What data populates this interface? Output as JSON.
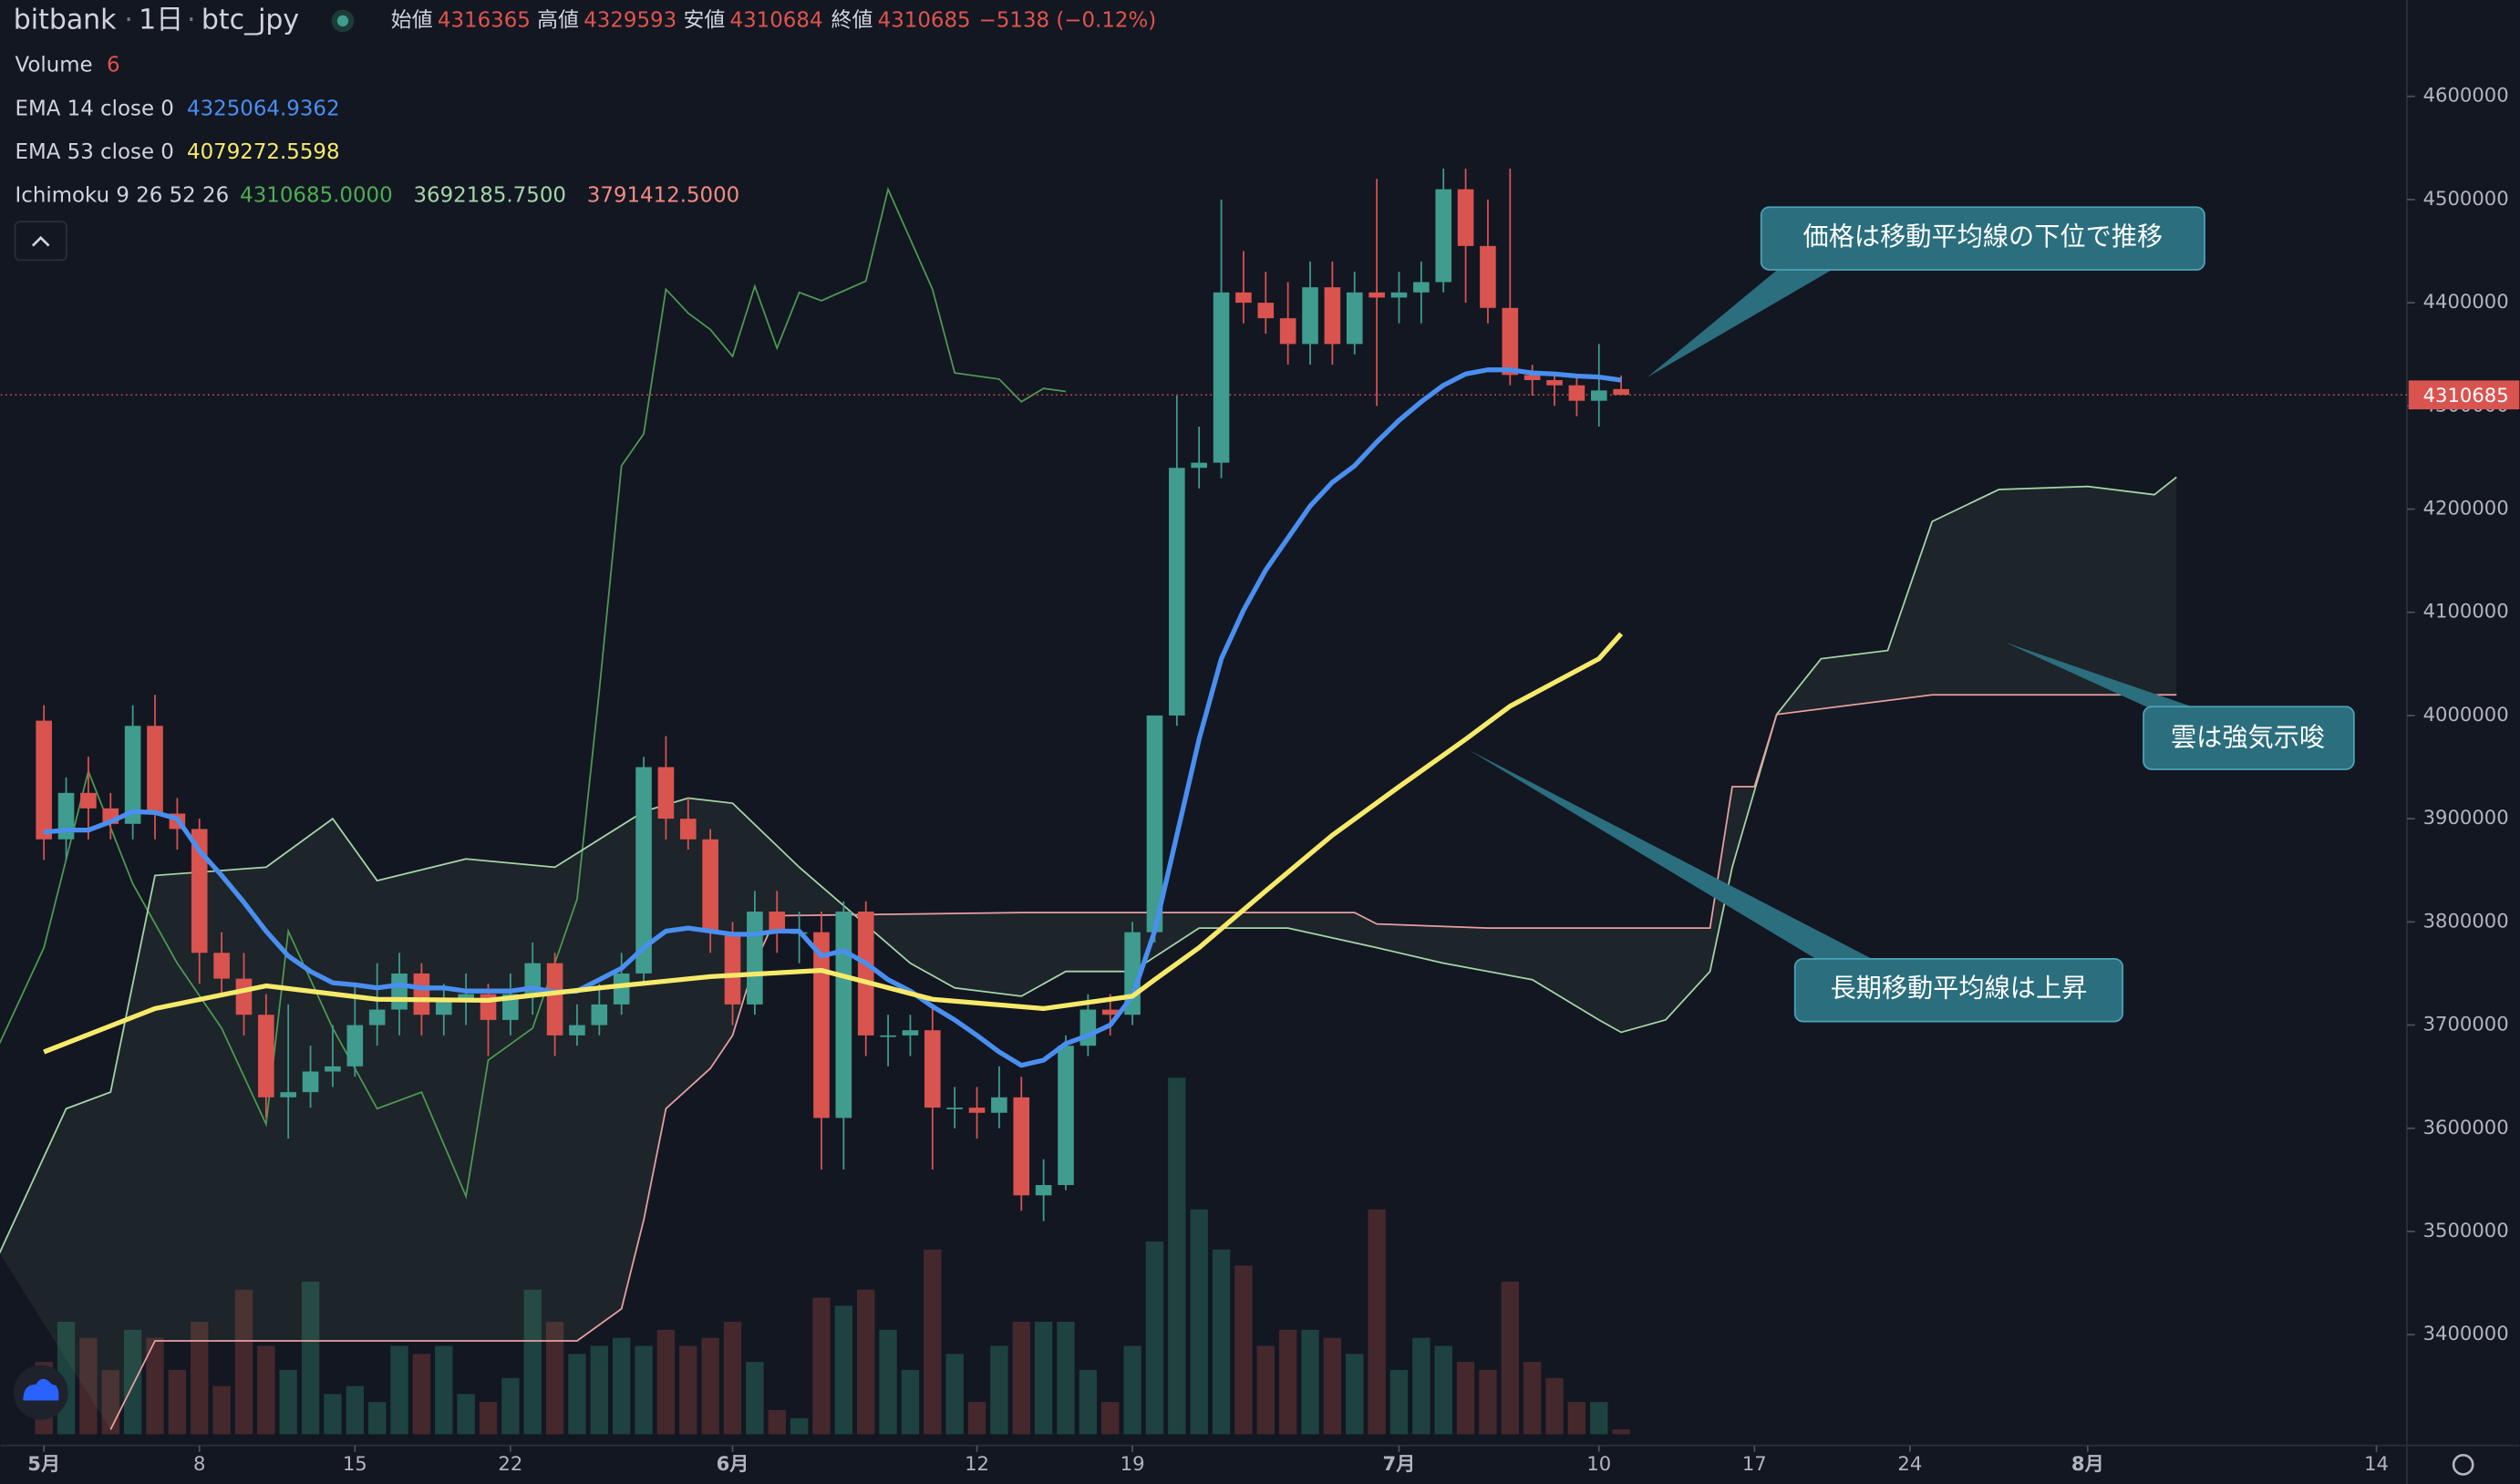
{
  "chart_data": {
    "type": "candlestick",
    "symbol": "bitbank",
    "interval": "1日",
    "pair": "btc_jpy",
    "ohlc_labels": [
      "始値",
      "高値",
      "安値",
      "終値"
    ],
    "change": "−5138 (−0.12%)",
    "up_color": "#3f9c8e",
    "down_color": "#d9534f",
    "x": [
      0,
      1,
      2,
      3,
      4,
      5,
      6,
      7,
      8,
      9,
      10,
      11,
      12,
      13,
      14,
      15,
      16,
      17,
      18,
      19,
      20,
      21,
      22,
      23,
      24,
      25,
      26,
      27,
      28,
      29,
      30,
      31,
      32,
      33,
      34,
      35,
      36,
      37,
      38,
      39,
      40,
      41,
      42,
      43,
      44,
      45,
      46,
      47,
      48,
      49,
      50,
      51,
      52,
      53,
      54,
      55,
      56,
      57,
      58,
      59,
      60,
      61,
      62,
      63,
      64,
      65,
      66,
      67,
      68,
      69,
      70,
      71
    ],
    "ohlc": [
      [
        3995000,
        4010000,
        3860000,
        3880000
      ],
      [
        3880000,
        3940000,
        3860000,
        3925000
      ],
      [
        3925000,
        3960000,
        3880000,
        3910000
      ],
      [
        3910000,
        3925000,
        3880000,
        3895000
      ],
      [
        3895000,
        4010000,
        3880000,
        3990000
      ],
      [
        3990000,
        4020000,
        3880000,
        3905000
      ],
      [
        3905000,
        3920000,
        3870000,
        3890000
      ],
      [
        3890000,
        3900000,
        3740000,
        3770000
      ],
      [
        3770000,
        3790000,
        3730000,
        3745000
      ],
      [
        3745000,
        3770000,
        3690000,
        3710000
      ],
      [
        3710000,
        3730000,
        3610000,
        3630000
      ],
      [
        3630000,
        3720000,
        3590000,
        3635000
      ],
      [
        3635000,
        3680000,
        3620000,
        3655000
      ],
      [
        3655000,
        3700000,
        3640000,
        3660000
      ],
      [
        3660000,
        3740000,
        3650000,
        3700000
      ],
      [
        3700000,
        3760000,
        3680000,
        3715000
      ],
      [
        3715000,
        3770000,
        3690000,
        3750000
      ],
      [
        3750000,
        3760000,
        3690000,
        3710000
      ],
      [
        3710000,
        3740000,
        3690000,
        3725000
      ],
      [
        3725000,
        3750000,
        3700000,
        3730000
      ],
      [
        3730000,
        3740000,
        3670000,
        3705000
      ],
      [
        3705000,
        3750000,
        3690000,
        3730000
      ],
      [
        3730000,
        3780000,
        3710000,
        3760000
      ],
      [
        3760000,
        3770000,
        3670000,
        3690000
      ],
      [
        3690000,
        3720000,
        3680000,
        3700000
      ],
      [
        3700000,
        3740000,
        3690000,
        3720000
      ],
      [
        3720000,
        3770000,
        3710000,
        3750000
      ],
      [
        3750000,
        3960000,
        3740000,
        3950000
      ],
      [
        3950000,
        3980000,
        3880000,
        3900000
      ],
      [
        3900000,
        3920000,
        3870000,
        3880000
      ],
      [
        3880000,
        3890000,
        3770000,
        3790000
      ],
      [
        3790000,
        3800000,
        3700000,
        3720000
      ],
      [
        3720000,
        3830000,
        3710000,
        3810000
      ],
      [
        3810000,
        3830000,
        3770000,
        3790000
      ],
      [
        3790000,
        3810000,
        3760000,
        3790000
      ],
      [
        3790000,
        3810000,
        3560000,
        3610000
      ],
      [
        3610000,
        3820000,
        3560000,
        3810000
      ],
      [
        3810000,
        3820000,
        3670000,
        3690000
      ],
      [
        3690000,
        3710000,
        3660000,
        3690000
      ],
      [
        3690000,
        3710000,
        3670000,
        3695000
      ],
      [
        3695000,
        3720000,
        3560000,
        3620000
      ],
      [
        3620000,
        3640000,
        3600000,
        3620000
      ],
      [
        3620000,
        3640000,
        3590000,
        3615000
      ],
      [
        3615000,
        3660000,
        3600000,
        3630000
      ],
      [
        3630000,
        3650000,
        3520000,
        3535000
      ],
      [
        3535000,
        3570000,
        3510000,
        3545000
      ],
      [
        3545000,
        3690000,
        3540000,
        3680000
      ],
      [
        3680000,
        3730000,
        3670000,
        3715000
      ],
      [
        3715000,
        3730000,
        3690000,
        3710000
      ],
      [
        3710000,
        3800000,
        3700000,
        3790000
      ],
      [
        3790000,
        4000000,
        3780000,
        4000000
      ],
      [
        4000000,
        4310000,
        3990000,
        4240000
      ],
      [
        4240000,
        4280000,
        4220000,
        4245000
      ],
      [
        4245000,
        4500000,
        4230000,
        4410000
      ],
      [
        4410000,
        4450000,
        4380000,
        4400000
      ],
      [
        4400000,
        4430000,
        4370000,
        4385000
      ],
      [
        4385000,
        4420000,
        4340000,
        4360000
      ],
      [
        4360000,
        4440000,
        4340000,
        4415000
      ],
      [
        4415000,
        4440000,
        4340000,
        4360000
      ],
      [
        4360000,
        4430000,
        4350000,
        4410000
      ],
      [
        4410000,
        4520000,
        4300000,
        4405000
      ],
      [
        4405000,
        4430000,
        4380000,
        4410000
      ],
      [
        4410000,
        4440000,
        4380000,
        4420000
      ],
      [
        4420000,
        4530000,
        4410000,
        4510000
      ],
      [
        4510000,
        4530000,
        4400000,
        4455000
      ],
      [
        4455000,
        4500000,
        4380000,
        4395000
      ],
      [
        4395000,
        4530000,
        4320000,
        4330000
      ],
      [
        4330000,
        4340000,
        4310000,
        4325000
      ],
      [
        4325000,
        4330000,
        4300000,
        4320000
      ],
      [
        4320000,
        4330000,
        4290000,
        4305000
      ],
      [
        4305000,
        4360000,
        4280000,
        4315000
      ],
      [
        4316365,
        4329593,
        4310684,
        4310685
      ]
    ],
    "volume": {
      "name": "Volume",
      "ylim": [
        0,
        900
      ],
      "values": [
        90,
        140,
        120,
        80,
        130,
        120,
        80,
        140,
        60,
        180,
        110,
        80,
        190,
        50,
        60,
        40,
        110,
        100,
        110,
        50,
        40,
        70,
        180,
        140,
        100,
        110,
        120,
        110,
        130,
        110,
        120,
        140,
        90,
        30,
        20,
        170,
        160,
        180,
        130,
        80,
        230,
        100,
        40,
        110,
        140,
        140,
        140,
        80,
        40,
        110,
        240,
        444,
        280,
        230,
        210,
        110,
        130,
        130,
        120,
        100,
        280,
        80,
        120,
        110,
        90,
        80,
        190,
        90,
        70,
        40,
        40,
        6
      ]
    },
    "series": [
      {
        "name": "EMA 14 close 0",
        "color": "#4a8ff0",
        "x": [
          0,
          1,
          2,
          3,
          4,
          5,
          6,
          7,
          8,
          9,
          10,
          11,
          12,
          13,
          14,
          15,
          16,
          17,
          18,
          19,
          20,
          21,
          22,
          23,
          24,
          25,
          26,
          27,
          28,
          29,
          30,
          31,
          32,
          33,
          34,
          35,
          36,
          37,
          38,
          39,
          40,
          41,
          42,
          43,
          44,
          45,
          46,
          47,
          48,
          49,
          50,
          51,
          52,
          53,
          54,
          55,
          56,
          57,
          58,
          59,
          60,
          61,
          62,
          63,
          64,
          65,
          66,
          67,
          68,
          69,
          70,
          71
        ],
        "values": [
          3887000,
          3889000,
          3889000,
          3897000,
          3907000,
          3906000,
          3900000,
          3869000,
          3845000,
          3819000,
          3791000,
          3767000,
          3752000,
          3741000,
          3739000,
          3736000,
          3739000,
          3736000,
          3736000,
          3733000,
          3733000,
          3733000,
          3736000,
          3732000,
          3733000,
          3744000,
          3755000,
          3775000,
          3791000,
          3794000,
          3791000,
          3788000,
          3788000,
          3791000,
          3791000,
          3767000,
          3772000,
          3760000,
          3744000,
          3733000,
          3718000,
          3705000,
          3690000,
          3674000,
          3661000,
          3666000,
          3682000,
          3690000,
          3700000,
          3728000,
          3791000,
          3884000,
          3977000,
          4055000,
          4102000,
          4141000,
          4172000,
          4203000,
          4226000,
          4242000,
          4265000,
          4286000,
          4304000,
          4320000,
          4331000,
          4335000,
          4335000,
          4332000,
          4331000,
          4329000,
          4328000,
          4325064.9362
        ]
      },
      {
        "name": "EMA 53 close 0",
        "color": "#f7ea6a",
        "x": [
          0,
          5,
          10,
          15,
          20,
          25,
          30,
          35,
          40,
          45,
          49,
          50,
          52,
          55,
          58,
          61,
          64,
          66,
          68,
          70,
          71
        ],
        "values": [
          3674000,
          3716000,
          3738000,
          3725000,
          3724000,
          3736000,
          3747000,
          3753000,
          3725000,
          3716000,
          3728000,
          3744000,
          3775000,
          3830000,
          3884000,
          3931000,
          3977000,
          4009000,
          4032000,
          4055000,
          4079272.5598
        ]
      }
    ],
    "ichimoku": {
      "name": "Ichimoku 9 26 52 26",
      "values": [
        4310685,
        3692185.75,
        3791412.5
      ],
      "value_labels": [
        "4310685.0000",
        "3692185.7500",
        "3791412.5000"
      ],
      "colors": [
        "#4caf50",
        "#a5d6a7",
        "#f28b82"
      ],
      "lines": [
        {
          "color": "#4c9a50",
          "x": [
            -2,
            0,
            2,
            4,
            6,
            8,
            10,
            11,
            13,
            15,
            17,
            19,
            20,
            22,
            23,
            24,
            25,
            26,
            27,
            28,
            29,
            30,
            31,
            32,
            33,
            34,
            35,
            37,
            38,
            40,
            41,
            43,
            44,
            45,
            46
          ],
          "values": [
            3682000,
            3775000,
            3946000,
            3837000,
            3760000,
            3697000,
            3604000,
            3791000,
            3697000,
            3619000,
            3635000,
            3534000,
            3666000,
            3697000,
            3760000,
            3822000,
            4024000,
            4242000,
            4273000,
            4413000,
            4390000,
            4374000,
            4348000,
            4416000,
            4356000,
            4410000,
            4402000,
            4421000,
            4510000,
            4413000,
            4332000,
            4326000,
            4304000,
            4317000,
            4314000
          ]
        },
        {
          "color": "#a5d6a7",
          "x": [
            -2,
            1,
            3,
            5,
            10,
            13,
            15,
            19,
            23,
            27,
            29,
            31,
            34,
            39,
            41,
            44,
            46,
            49,
            52,
            56,
            60,
            63,
            67,
            70,
            71,
            73,
            75,
            76,
            78,
            80,
            83,
            85,
            88,
            92,
            95,
            96
          ],
          "values": [
            3479000,
            3619000,
            3635000,
            3845000,
            3853000,
            3900000,
            3840000,
            3861000,
            3853000,
            3907000,
            3920000,
            3915000,
            3853000,
            3760000,
            3736000,
            3728000,
            3752000,
            3752000,
            3794000,
            3794000,
            3775000,
            3760000,
            3744000,
            3705000,
            3693000,
            3705000,
            3752000,
            3853000,
            4001000,
            4055000,
            4063000,
            4188000,
            4219000,
            4222000,
            4214000,
            4231000
          ]
        },
        {
          "color": "#e8a0a0",
          "x": [
            3,
            5,
            24,
            26,
            27,
            28,
            30,
            31,
            32,
            33,
            44,
            59,
            60,
            65,
            75,
            76,
            77,
            78,
            85,
            96
          ],
          "values": [
            3308000,
            3394000,
            3394000,
            3425000,
            3511000,
            3619000,
            3658000,
            3690000,
            3760000,
            3806000,
            3809000,
            3809000,
            3798000,
            3794000,
            3794000,
            3931000,
            3931000,
            4001000,
            4020000,
            4020000
          ]
        }
      ]
    },
    "ylim": [
      3292624,
      4693384
    ],
    "yticks": [
      3400000,
      3500000,
      3600000,
      3700000,
      3800000,
      3900000,
      4000000,
      4100000,
      4200000,
      4300000,
      4400000,
      4500000,
      4600000
    ],
    "xlim": [
      -1.95,
      106.3
    ],
    "xticks": [
      {
        "value": 0,
        "label": "5月"
      },
      {
        "value": 7,
        "label": "8"
      },
      {
        "value": 14,
        "label": "15"
      },
      {
        "value": 21,
        "label": "22"
      },
      {
        "value": 31,
        "label": "6月"
      },
      {
        "value": 42,
        "label": "12"
      },
      {
        "value": 49,
        "label": "19"
      },
      {
        "value": 61,
        "label": "7月"
      },
      {
        "value": 70,
        "label": "10"
      },
      {
        "value": 77,
        "label": "17"
      },
      {
        "value": 84,
        "label": "24"
      },
      {
        "value": 92,
        "label": "8月"
      },
      {
        "value": 105,
        "label": "14"
      }
    ],
    "annotations": [
      {
        "text": "価格は移動平均線の下位で推移"
      },
      {
        "text": "長期移動平均線は上昇"
      },
      {
        "text": "雲は強気示唆"
      }
    ]
  }
}
